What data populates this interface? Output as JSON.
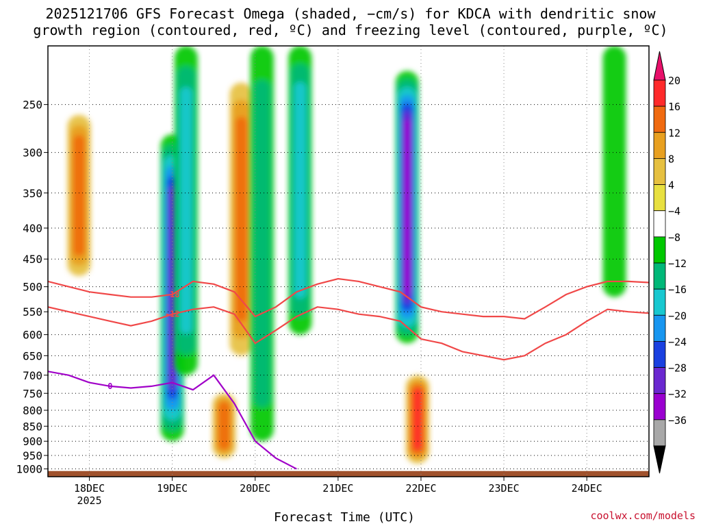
{
  "chart_data": {
    "type": "heatmap",
    "title": "2025121706 GFS Forecast Omega (shaded, −cm/s) for KDCA with dendritic snow\ngrowth region (contoured, red, ºC) and freezing level (contoured, purple, ºC)",
    "xlabel": "Forecast Time (UTC)",
    "ylabel": "",
    "credit": "coolwx.com/models",
    "y_axis": {
      "type": "log-pressure",
      "range": [
        200,
        1030
      ],
      "ticks": [
        250,
        300,
        350,
        400,
        450,
        500,
        550,
        600,
        650,
        700,
        750,
        800,
        850,
        900,
        950,
        1000
      ]
    },
    "x_axis": {
      "range_hours": [
        6,
        180
      ],
      "ticks": [
        {
          "hour": 18,
          "label": "18DEC"
        },
        {
          "hour": 42,
          "label": "19DEC"
        },
        {
          "hour": 66,
          "label": "20DEC"
        },
        {
          "hour": 90,
          "label": "21DEC"
        },
        {
          "hour": 114,
          "label": "22DEC"
        },
        {
          "hour": 138,
          "label": "23DEC"
        },
        {
          "hour": 162,
          "label": "24DEC"
        }
      ],
      "sublabel": "2025"
    },
    "colorbar": {
      "labels": [
        "20",
        "16",
        "12",
        "8",
        "4",
        "−4",
        "−8",
        "−12",
        "−16",
        "−20",
        "−24",
        "−28",
        "−32",
        "−36"
      ],
      "colors": [
        "#ff2a2a",
        "#f06a10",
        "#e8a020",
        "#e6c040",
        "#e8e040",
        "#ffffff",
        "#00c800",
        "#00b878",
        "#18c8d0",
        "#1896f0",
        "#1a40e0",
        "#6a28d0",
        "#9a00d0",
        "#a8a8a8"
      ],
      "top_color": "#e8106a",
      "bottom_color": "#000000"
    },
    "omega_features": [
      {
        "hour": 15,
        "p_top": 260,
        "p_bot": 480,
        "value": 15
      },
      {
        "hour": 42,
        "p_top": 280,
        "p_bot": 900,
        "value": -26
      },
      {
        "hour": 46,
        "p_top": 200,
        "p_bot": 700,
        "value": -14
      },
      {
        "hour": 62,
        "p_top": 230,
        "p_bot": 650,
        "value": 13
      },
      {
        "hour": 57,
        "p_top": 750,
        "p_bot": 960,
        "value": 14
      },
      {
        "hour": 68,
        "p_top": 200,
        "p_bot": 900,
        "value": -10
      },
      {
        "hour": 79,
        "p_top": 200,
        "p_bot": 600,
        "value": -13
      },
      {
        "hour": 110,
        "p_top": 220,
        "p_bot": 620,
        "value": -31
      },
      {
        "hour": 113,
        "p_top": 700,
        "p_bot": 980,
        "value": 18
      },
      {
        "hour": 170,
        "p_top": 200,
        "p_bot": 520,
        "value": -7
      }
    ],
    "contours": {
      "dgz_red": [
        {
          "label": "-18",
          "hours": [
            6,
            12,
            18,
            24,
            30,
            36,
            42,
            48,
            54,
            60,
            66,
            72,
            78,
            84,
            90,
            96,
            102,
            108,
            114,
            120,
            126,
            132,
            138,
            144,
            150,
            156,
            162,
            168,
            174,
            180
          ],
          "pressure": [
            490,
            500,
            510,
            515,
            520,
            520,
            515,
            490,
            495,
            510,
            560,
            540,
            510,
            495,
            485,
            490,
            500,
            510,
            540,
            550,
            555,
            560,
            560,
            565,
            540,
            515,
            500,
            490,
            490,
            492
          ]
        },
        {
          "label": "-12",
          "hours": [
            6,
            12,
            18,
            24,
            30,
            36,
            42,
            48,
            54,
            60,
            66,
            72,
            78,
            84,
            90,
            96,
            102,
            108,
            114,
            120,
            126,
            132,
            138,
            144,
            150,
            156,
            162,
            168,
            174,
            180
          ],
          "pressure": [
            540,
            550,
            560,
            570,
            580,
            570,
            555,
            545,
            540,
            555,
            620,
            590,
            560,
            540,
            545,
            555,
            560,
            570,
            610,
            620,
            640,
            650,
            660,
            650,
            620,
            600,
            570,
            545,
            550,
            553
          ]
        }
      ],
      "freezing_purple": [
        {
          "label": "0",
          "hours": [
            6,
            12,
            18,
            24,
            30,
            36,
            42,
            48,
            54,
            60,
            66,
            72,
            78
          ],
          "pressure": [
            690,
            700,
            720,
            730,
            735,
            730,
            720,
            740,
            700,
            780,
            900,
            960,
            1000
          ]
        }
      ]
    }
  }
}
